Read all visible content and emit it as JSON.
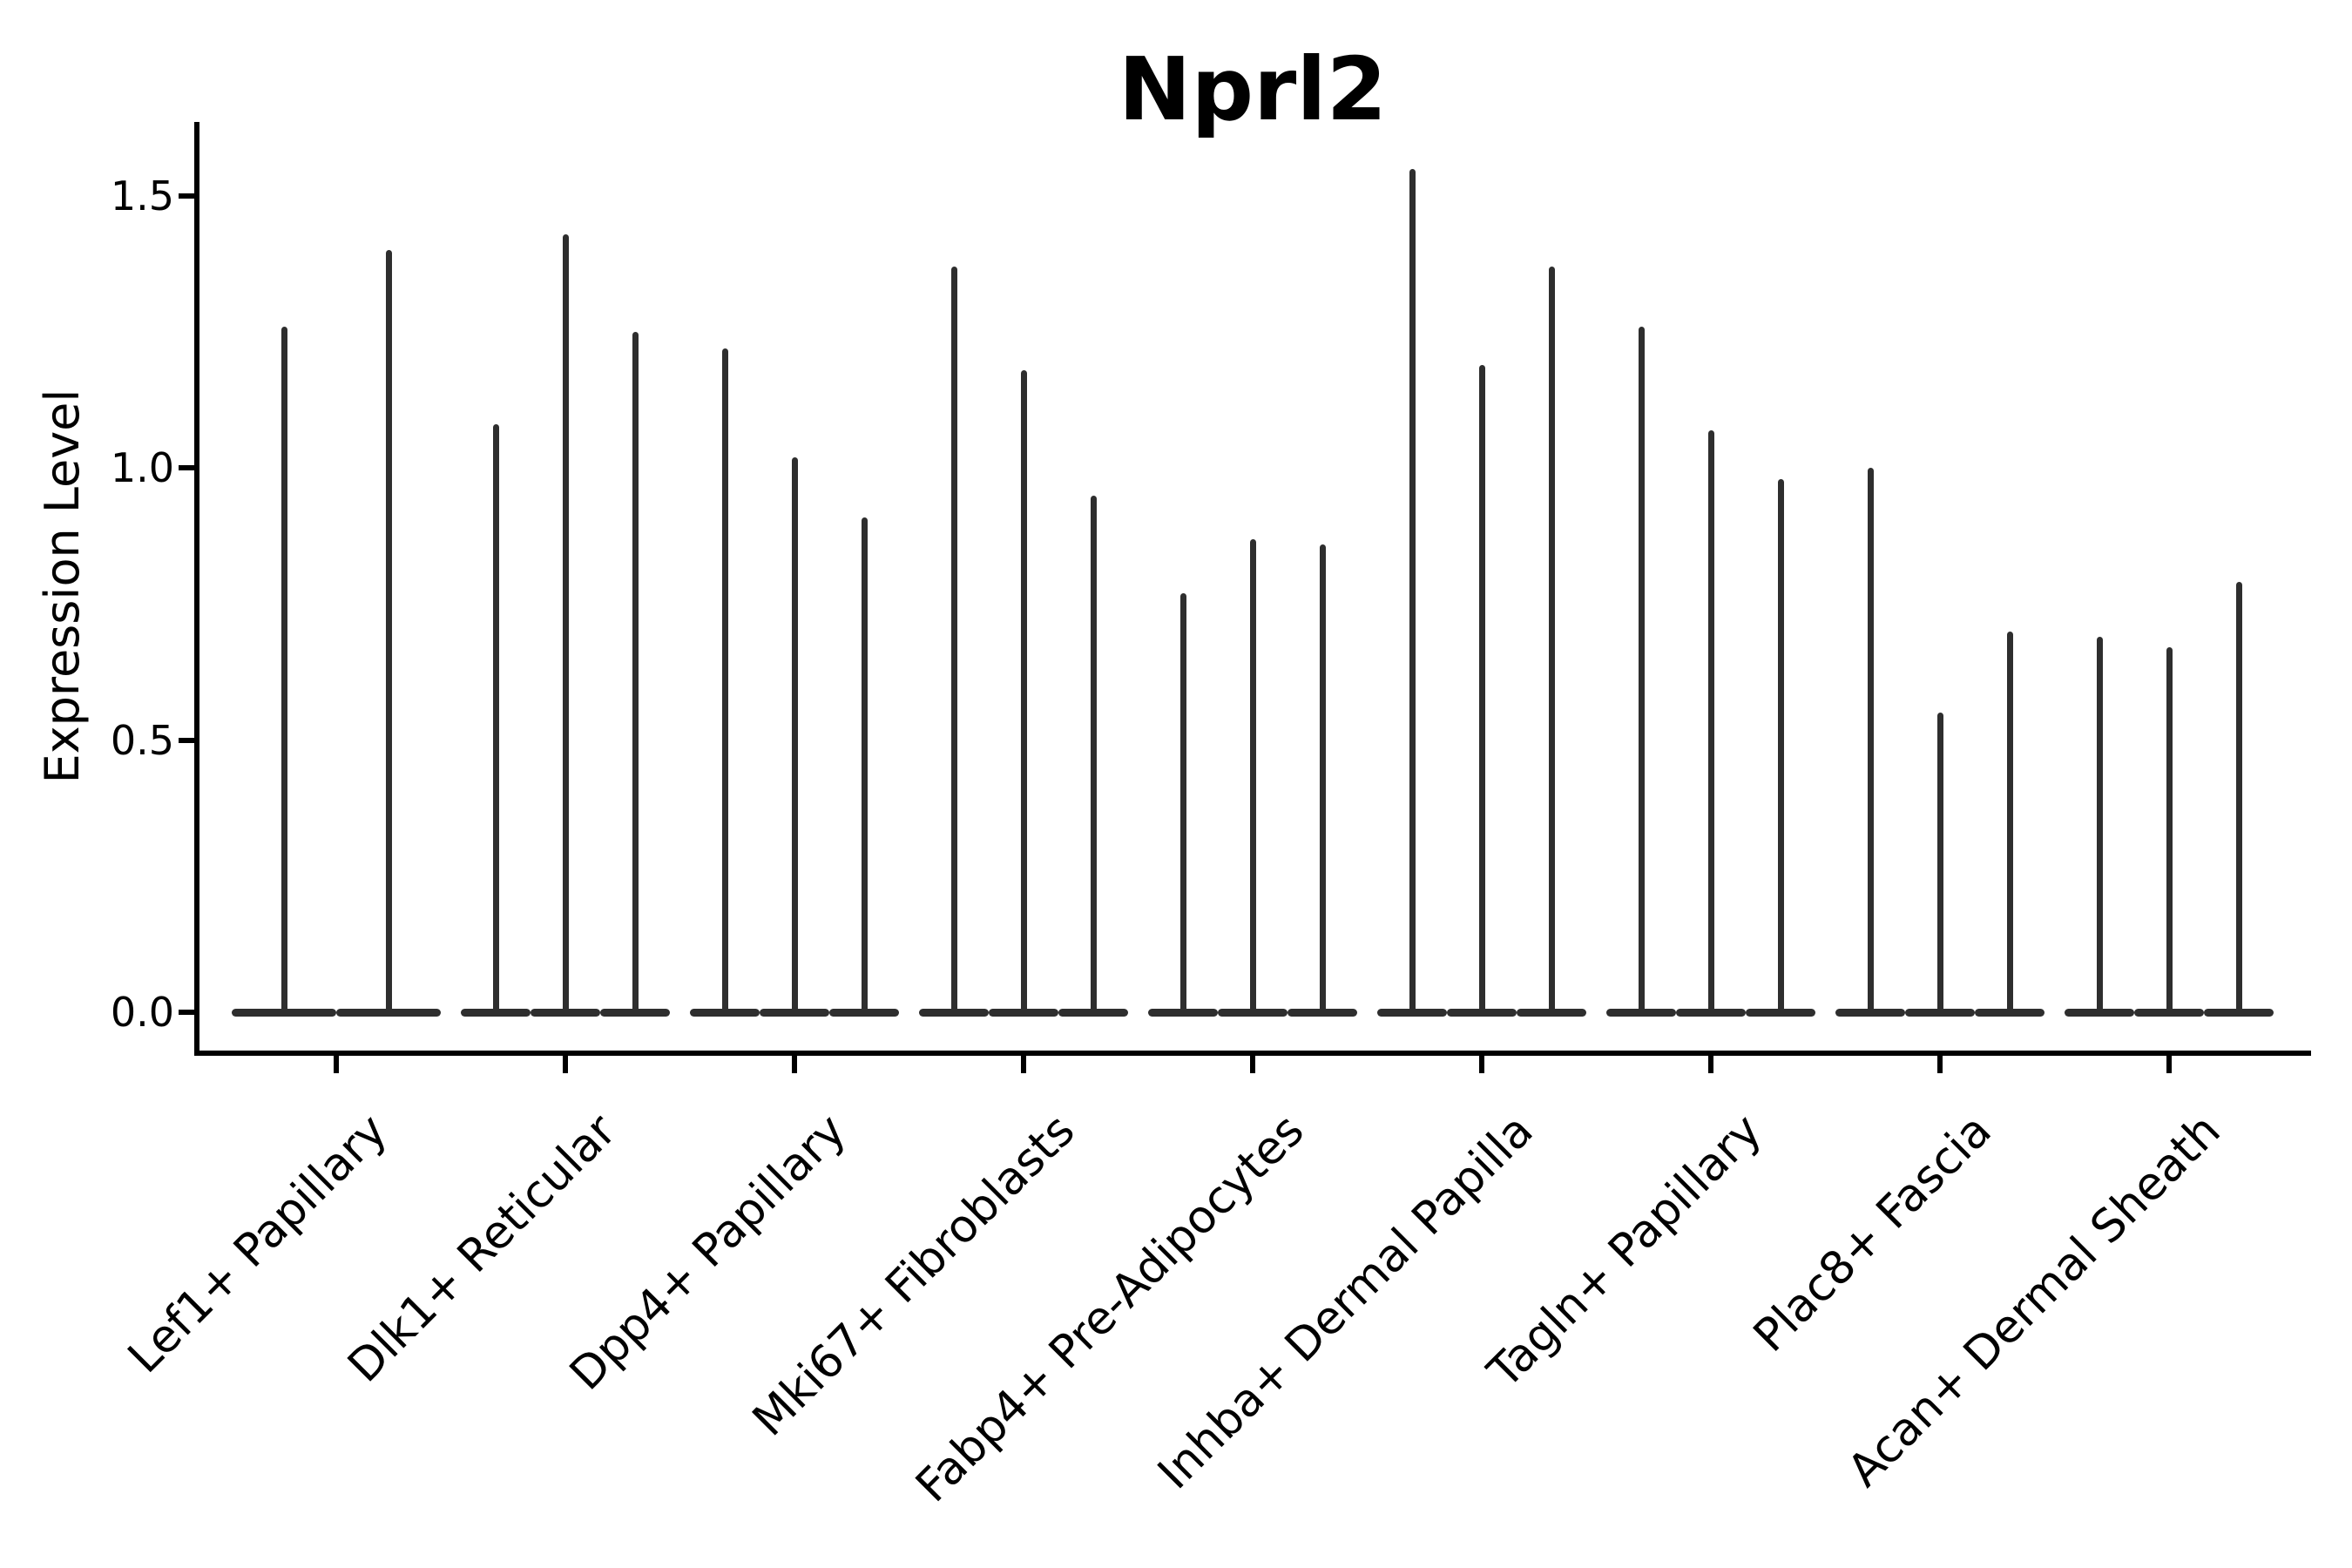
{
  "title": "Nprl2",
  "y_axis": {
    "label": "Expression Level",
    "tick_labels": [
      "0.0",
      "0.5",
      "1.0",
      "1.5"
    ]
  },
  "x_axis": {
    "categories": [
      "Lef1+ Papillary",
      "Dlk1+ Reticular",
      "Dpp4+ Papillary",
      "Mki67+ Fibroblasts",
      "Fabp4+ Pre-Adipocytes",
      "Inhba+ Dermal Papilla",
      "Tagln+ Papillary",
      "Plac8+ Fascia",
      "Acan+ Dermal Sheath"
    ]
  },
  "chart_data": {
    "type": "violin",
    "title": "Nprl2",
    "xlabel": "",
    "ylabel": "Expression Level",
    "ylim": [
      -0.08,
      1.64
    ],
    "yticks": [
      0.0,
      0.5,
      1.0,
      1.5
    ],
    "grid": false,
    "legend": "none",
    "violin_style": "mass at zero with thin spike up to maximum expression",
    "categories": [
      "Lef1+ Papillary",
      "Dlk1+ Reticular",
      "Dpp4+ Papillary",
      "Mki67+ Fibroblasts",
      "Fabp4+ Pre-Adipocytes",
      "Inhba+ Dermal Papilla",
      "Tagln+ Papillary",
      "Plac8+ Fascia",
      "Acan+ Dermal Sheath"
    ],
    "series": [
      {
        "category": "Lef1+ Papillary",
        "violin_max_expression": [
          1.26,
          1.4
        ]
      },
      {
        "category": "Dlk1+ Reticular",
        "violin_max_expression": [
          1.08,
          1.43,
          1.25
        ]
      },
      {
        "category": "Dpp4+ Papillary",
        "violin_max_expression": [
          1.22,
          1.02,
          0.91
        ]
      },
      {
        "category": "Mki67+ Fibroblasts",
        "violin_max_expression": [
          1.37,
          1.18,
          0.95
        ]
      },
      {
        "category": "Fabp4+ Pre-Adipocytes",
        "violin_max_expression": [
          0.77,
          0.87,
          0.86
        ]
      },
      {
        "category": "Inhba+ Dermal Papilla",
        "violin_max_expression": [
          1.55,
          1.19,
          1.37
        ]
      },
      {
        "category": "Tagln+ Papillary",
        "violin_max_expression": [
          1.26,
          1.07,
          0.98
        ]
      },
      {
        "category": "Plac8+ Fascia",
        "violin_max_expression": [
          1.0,
          0.55,
          0.7
        ]
      },
      {
        "category": "Acan+ Dermal Sheath",
        "violin_max_expression": [
          0.69,
          0.67,
          0.79
        ]
      }
    ]
  },
  "colors": {
    "violin": "#2e2e2e",
    "axis": "#000000",
    "text": "#000000",
    "background": "#ffffff"
  }
}
